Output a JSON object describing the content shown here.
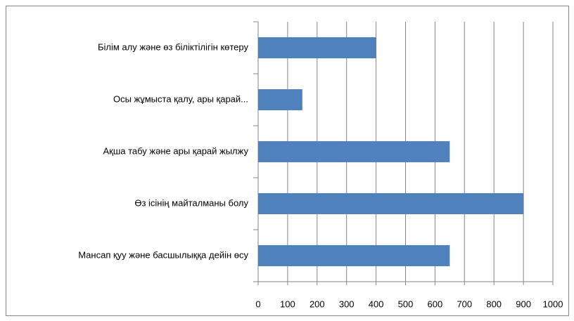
{
  "chart_data": {
    "type": "bar",
    "orientation": "horizontal",
    "categories": [
      "Білім алу және өз біліктілігін көтеру",
      "Осы жұмыста қалу, ары қарай...",
      "Ақша табу және ары қарай жылжу",
      "Өз ісінің майталманы болу",
      "Мансап қуу және басшылыққа дейін өсу"
    ],
    "values": [
      400,
      150,
      650,
      900,
      650
    ],
    "color": "#4f81bd",
    "xlim": [
      0,
      1000
    ],
    "xticks": [
      0,
      100,
      200,
      300,
      400,
      500,
      600,
      700,
      800,
      900,
      1000
    ],
    "grid": true
  }
}
